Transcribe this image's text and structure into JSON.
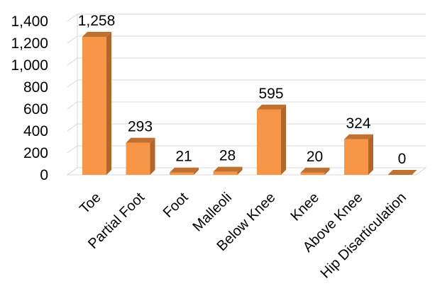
{
  "chart_data": {
    "type": "bar",
    "style": "3d-column",
    "categories": [
      "Toe",
      "Partial Foot",
      "Foot",
      "Malleoli",
      "Below Knee",
      "Knee",
      "Above Knee",
      "Hip Disarticulation"
    ],
    "values": [
      1258,
      293,
      21,
      28,
      595,
      20,
      324,
      0
    ],
    "data_labels": [
      "1,258",
      "293",
      "21",
      "28",
      "595",
      "20",
      "324",
      "0"
    ],
    "y_ticks": [
      "0",
      "200",
      "400",
      "600",
      "800",
      "1,000",
      "1,200",
      "1,400"
    ],
    "ylim": [
      0,
      1400
    ],
    "grid": true,
    "legend": "none",
    "colors": {
      "bar_front": "#f79646",
      "bar_top": "#c0702f",
      "bar_side": "#b5652a",
      "grid": "#d9d9d9"
    }
  }
}
